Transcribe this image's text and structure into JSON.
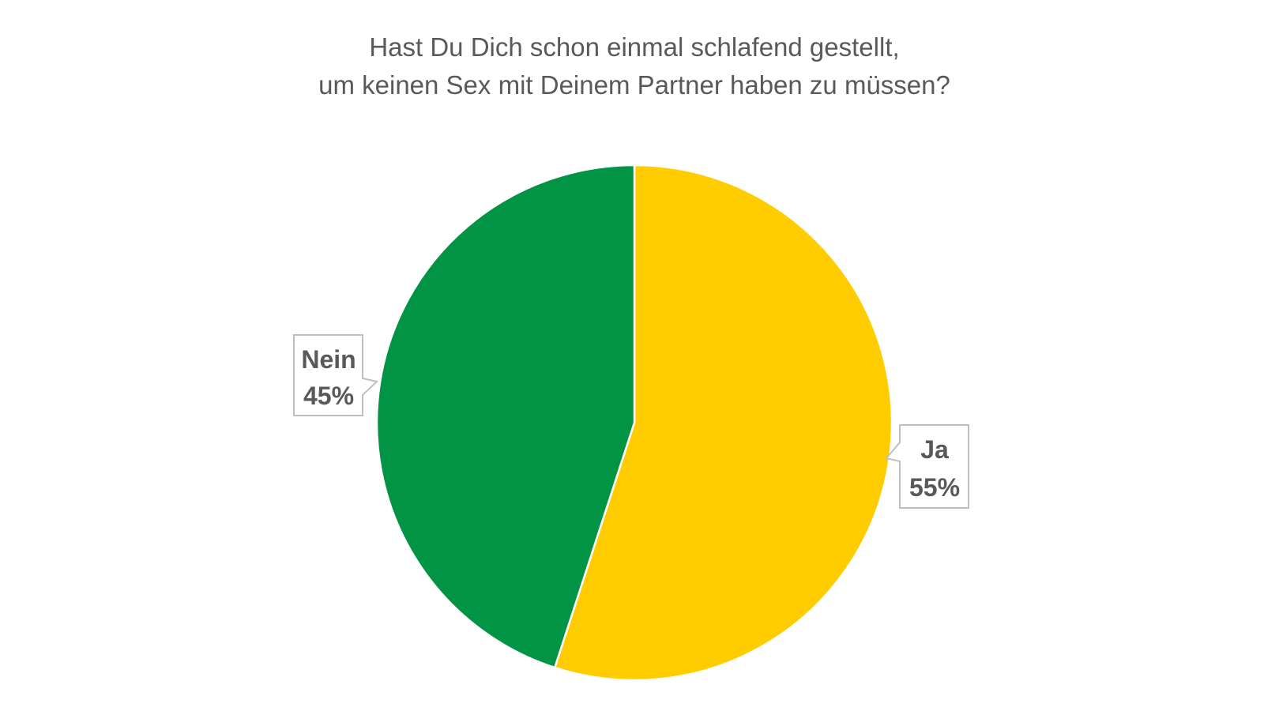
{
  "chart_data": {
    "type": "pie",
    "title": [
      "Hast Du Dich schon einmal schlafend gestellt,",
      "um keinen Sex mit Deinem Partner haben zu müssen?"
    ],
    "slices": [
      {
        "label": "Ja",
        "value": 55,
        "value_label": "55%",
        "color": "#FFCC00"
      },
      {
        "label": "Nein",
        "value": 45,
        "value_label": "45%",
        "color": "#009444"
      }
    ],
    "start_angle": "12 o'clock",
    "direction": "clockwise",
    "legend": "none",
    "data_labels": "callouts"
  }
}
